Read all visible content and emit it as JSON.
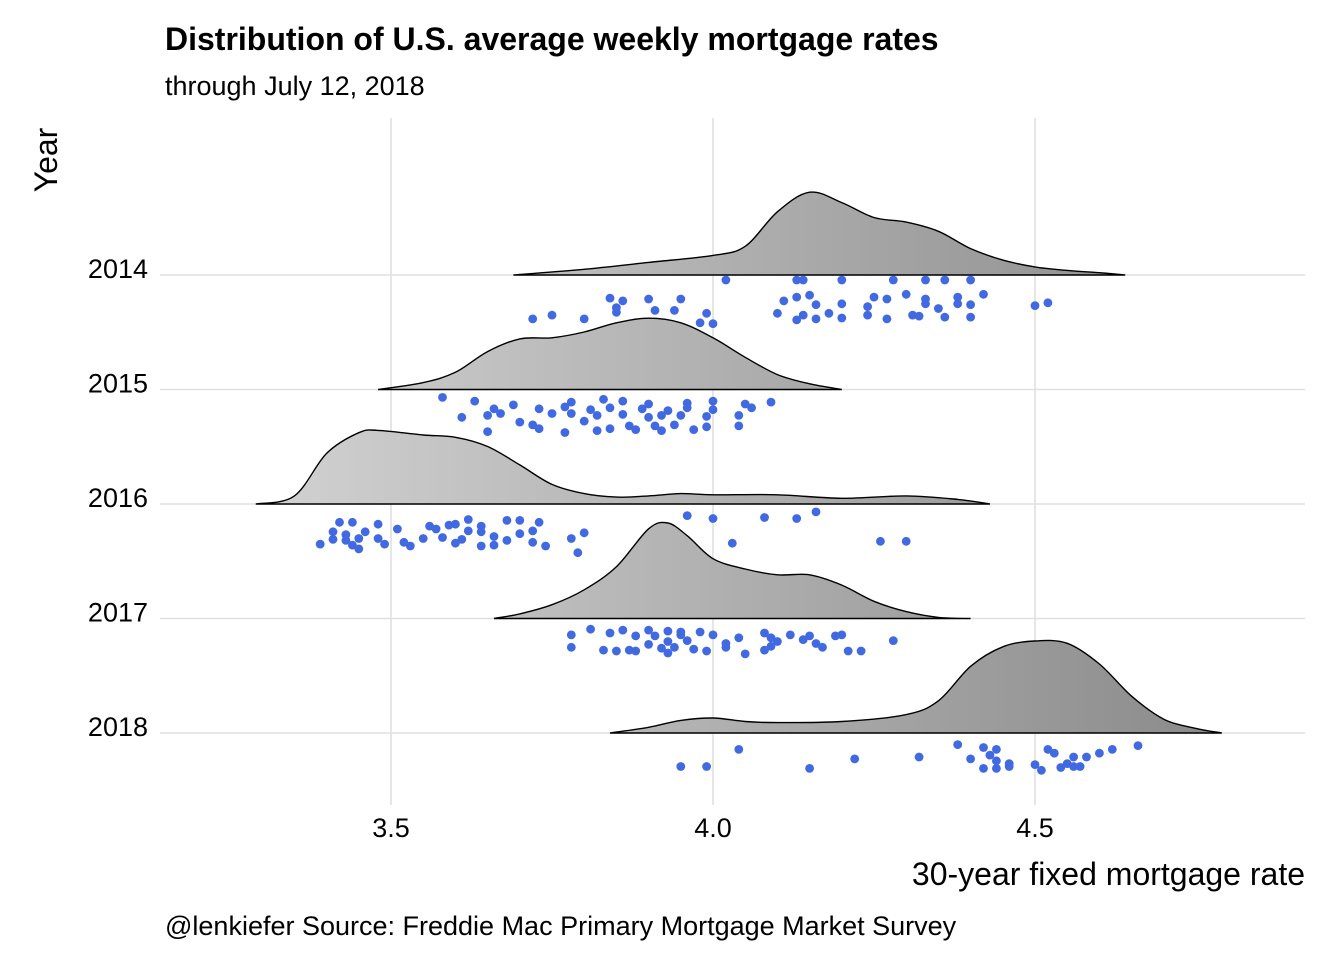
{
  "chart_data": {
    "type": "ridgeline",
    "title": "Distribution of U.S. average weekly mortgage rates",
    "subtitle": "through  July 12, 2018",
    "xlabel": "30-year fixed mortgage rate",
    "ylabel": "Year",
    "caption": "@lenkiefer Source: Freddie Mac Primary Mortgage Market Survey",
    "xlim": [
      3.2,
      4.9
    ],
    "x_ticks": [
      {
        "value": 3.5,
        "label": "3.5"
      },
      {
        "value": 4.0,
        "label": "4.0"
      },
      {
        "value": 4.5,
        "label": "4.5"
      }
    ],
    "grid": true,
    "colors": {
      "points": "#4169e1",
      "ridge_light": "#d4d4d4",
      "ridge_dark": "#8a8a8a",
      "grid": "#e0e0e0"
    },
    "ridges": [
      {
        "year": "2014",
        "density": [
          [
            3.69,
            0.0
          ],
          [
            3.8,
            0.05
          ],
          [
            3.9,
            0.11
          ],
          [
            4.0,
            0.17
          ],
          [
            4.05,
            0.25
          ],
          [
            4.1,
            0.55
          ],
          [
            4.15,
            0.72
          ],
          [
            4.2,
            0.63
          ],
          [
            4.25,
            0.5
          ],
          [
            4.3,
            0.46
          ],
          [
            4.35,
            0.38
          ],
          [
            4.4,
            0.23
          ],
          [
            4.45,
            0.13
          ],
          [
            4.5,
            0.07
          ],
          [
            4.55,
            0.04
          ],
          [
            4.6,
            0.02
          ],
          [
            4.64,
            0.0
          ]
        ],
        "points": [
          [
            4.02,
            0
          ],
          [
            4.13,
            0
          ],
          [
            4.14,
            0
          ],
          [
            4.2,
            0
          ],
          [
            4.28,
            0
          ],
          [
            4.33,
            0
          ],
          [
            4.36,
            0
          ],
          [
            4.4,
            0
          ],
          [
            4.13,
            0.18
          ],
          [
            4.15,
            0.16
          ],
          [
            4.25,
            0.18
          ],
          [
            4.3,
            0.15
          ],
          [
            4.33,
            0.2
          ],
          [
            4.38,
            0.18
          ],
          [
            4.42,
            0.15
          ],
          [
            3.9,
            0.2
          ],
          [
            3.95,
            0.2
          ],
          [
            3.84,
            0.19
          ],
          [
            3.86,
            0.22
          ],
          [
            3.85,
            0.29
          ],
          [
            4.11,
            0.22
          ],
          [
            4.16,
            0.26
          ],
          [
            4.2,
            0.25
          ],
          [
            4.24,
            0.28
          ],
          [
            4.27,
            0.2
          ],
          [
            4.33,
            0.25
          ],
          [
            4.35,
            0.3
          ],
          [
            4.38,
            0.25
          ],
          [
            4.4,
            0.26
          ],
          [
            4.52,
            0.24
          ],
          [
            4.5,
            0.27
          ],
          [
            3.91,
            0.32
          ],
          [
            3.94,
            0.32
          ],
          [
            3.99,
            0.35
          ],
          [
            3.75,
            0.37
          ],
          [
            3.8,
            0.41
          ],
          [
            3.85,
            0.34
          ],
          [
            4.1,
            0.35
          ],
          [
            4.14,
            0.37
          ],
          [
            4.18,
            0.35
          ],
          [
            4.2,
            0.4
          ],
          [
            4.24,
            0.37
          ],
          [
            4.31,
            0.37
          ],
          [
            4.36,
            0.39
          ],
          [
            4.4,
            0.39
          ],
          [
            4.13,
            0.42
          ],
          [
            4.16,
            0.41
          ],
          [
            4.27,
            0.41
          ],
          [
            4.32,
            0.38
          ],
          [
            3.72,
            0.41
          ],
          [
            3.98,
            0.45
          ],
          [
            4.0,
            0.46
          ]
        ]
      },
      {
        "year": "2015",
        "density": [
          [
            3.48,
            0.0
          ],
          [
            3.55,
            0.06
          ],
          [
            3.6,
            0.15
          ],
          [
            3.65,
            0.33
          ],
          [
            3.7,
            0.44
          ],
          [
            3.75,
            0.45
          ],
          [
            3.8,
            0.5
          ],
          [
            3.85,
            0.58
          ],
          [
            3.9,
            0.62
          ],
          [
            3.95,
            0.58
          ],
          [
            4.0,
            0.45
          ],
          [
            4.05,
            0.28
          ],
          [
            4.1,
            0.13
          ],
          [
            4.15,
            0.05
          ],
          [
            4.2,
            0.0
          ]
        ],
        "points": [
          [
            3.58,
            0.03
          ],
          [
            3.63,
            0.07
          ],
          [
            3.78,
            0.08
          ],
          [
            3.83,
            0.05
          ],
          [
            3.86,
            0.07
          ],
          [
            3.9,
            0.1
          ],
          [
            3.96,
            0.09
          ],
          [
            4.0,
            0.07
          ],
          [
            4.05,
            0.1
          ],
          [
            4.09,
            0.08
          ],
          [
            3.66,
            0.15
          ],
          [
            3.69,
            0.11
          ],
          [
            3.73,
            0.15
          ],
          [
            3.77,
            0.13
          ],
          [
            3.81,
            0.16
          ],
          [
            3.84,
            0.14
          ],
          [
            3.89,
            0.15
          ],
          [
            3.93,
            0.17
          ],
          [
            3.96,
            0.14
          ],
          [
            4.0,
            0.16
          ],
          [
            4.06,
            0.14
          ],
          [
            3.61,
            0.24
          ],
          [
            3.65,
            0.22
          ],
          [
            3.67,
            0.2
          ],
          [
            3.75,
            0.2
          ],
          [
            3.78,
            0.2
          ],
          [
            3.82,
            0.22
          ],
          [
            3.86,
            0.21
          ],
          [
            3.9,
            0.24
          ],
          [
            3.92,
            0.22
          ],
          [
            3.95,
            0.22
          ],
          [
            3.99,
            0.23
          ],
          [
            4.04,
            0.22
          ],
          [
            3.7,
            0.29
          ],
          [
            3.72,
            0.32
          ],
          [
            3.8,
            0.28
          ],
          [
            3.84,
            0.36
          ],
          [
            3.87,
            0.33
          ],
          [
            3.91,
            0.33
          ],
          [
            3.94,
            0.32
          ],
          [
            3.99,
            0.34
          ],
          [
            4.04,
            0.33
          ],
          [
            3.65,
            0.39
          ],
          [
            3.73,
            0.36
          ],
          [
            3.77,
            0.4
          ],
          [
            3.82,
            0.38
          ],
          [
            3.88,
            0.37
          ],
          [
            3.92,
            0.38
          ],
          [
            3.97,
            0.37
          ]
        ]
      },
      {
        "year": "2016",
        "density": [
          [
            3.29,
            0.0
          ],
          [
            3.35,
            0.07
          ],
          [
            3.4,
            0.44
          ],
          [
            3.45,
            0.62
          ],
          [
            3.48,
            0.64
          ],
          [
            3.55,
            0.6
          ],
          [
            3.6,
            0.58
          ],
          [
            3.65,
            0.5
          ],
          [
            3.7,
            0.34
          ],
          [
            3.75,
            0.17
          ],
          [
            3.8,
            0.09
          ],
          [
            3.85,
            0.06
          ],
          [
            3.9,
            0.07
          ],
          [
            3.95,
            0.09
          ],
          [
            4.0,
            0.08
          ],
          [
            4.1,
            0.08
          ],
          [
            4.2,
            0.05
          ],
          [
            4.3,
            0.07
          ],
          [
            4.38,
            0.04
          ],
          [
            4.43,
            0.0
          ]
        ],
        "points": [
          [
            3.96,
            0.07
          ],
          [
            4.0,
            0.1
          ],
          [
            4.08,
            0.09
          ],
          [
            4.13,
            0.1
          ],
          [
            4.16,
            0.03
          ],
          [
            3.42,
            0.14
          ],
          [
            3.44,
            0.14
          ],
          [
            3.48,
            0.16
          ],
          [
            3.56,
            0.18
          ],
          [
            3.6,
            0.16
          ],
          [
            3.62,
            0.11
          ],
          [
            3.64,
            0.18
          ],
          [
            3.68,
            0.12
          ],
          [
            3.7,
            0.12
          ],
          [
            3.73,
            0.14
          ],
          [
            3.59,
            0.17
          ],
          [
            3.46,
            0.24
          ],
          [
            3.51,
            0.21
          ],
          [
            3.57,
            0.21
          ],
          [
            3.62,
            0.23
          ],
          [
            3.64,
            0.24
          ],
          [
            3.7,
            0.26
          ],
          [
            3.72,
            0.23
          ],
          [
            3.8,
            0.25
          ],
          [
            3.41,
            0.24
          ],
          [
            3.43,
            0.27
          ],
          [
            3.45,
            0.31
          ],
          [
            3.48,
            0.31
          ],
          [
            3.52,
            0.35
          ],
          [
            3.55,
            0.31
          ],
          [
            3.58,
            0.3
          ],
          [
            3.61,
            0.32
          ],
          [
            3.66,
            0.29
          ],
          [
            3.68,
            0.33
          ],
          [
            3.72,
            0.35
          ],
          [
            3.78,
            0.31
          ],
          [
            3.41,
            0.32
          ],
          [
            3.43,
            0.33
          ],
          [
            3.39,
            0.37
          ],
          [
            3.44,
            0.38
          ],
          [
            3.45,
            0.42
          ],
          [
            3.49,
            0.37
          ],
          [
            3.53,
            0.39
          ],
          [
            3.6,
            0.36
          ],
          [
            3.64,
            0.39
          ],
          [
            3.66,
            0.38
          ],
          [
            3.74,
            0.39
          ],
          [
            3.79,
            0.46
          ],
          [
            4.03,
            0.36
          ],
          [
            4.26,
            0.34
          ],
          [
            4.3,
            0.34
          ]
        ]
      },
      {
        "year": "2017",
        "density": [
          [
            3.66,
            0.0
          ],
          [
            3.7,
            0.04
          ],
          [
            3.75,
            0.12
          ],
          [
            3.8,
            0.25
          ],
          [
            3.85,
            0.45
          ],
          [
            3.9,
            0.78
          ],
          [
            3.93,
            0.83
          ],
          [
            3.96,
            0.72
          ],
          [
            4.0,
            0.52
          ],
          [
            4.05,
            0.43
          ],
          [
            4.1,
            0.38
          ],
          [
            4.15,
            0.38
          ],
          [
            4.2,
            0.29
          ],
          [
            4.25,
            0.15
          ],
          [
            4.3,
            0.06
          ],
          [
            4.35,
            0.01
          ],
          [
            4.4,
            0.0
          ]
        ],
        "points": [
          [
            3.81,
            0.06
          ],
          [
            3.86,
            0.07
          ],
          [
            3.9,
            0.07
          ],
          [
            3.93,
            0.08
          ],
          [
            3.95,
            0.09
          ],
          [
            3.98,
            0.09
          ],
          [
            4.0,
            0.12
          ],
          [
            4.08,
            0.1
          ],
          [
            4.12,
            0.12
          ],
          [
            4.15,
            0.13
          ],
          [
            4.2,
            0.12
          ],
          [
            3.78,
            0.12
          ],
          [
            3.84,
            0.1
          ],
          [
            3.88,
            0.13
          ],
          [
            3.91,
            0.13
          ],
          [
            3.95,
            0.12
          ],
          [
            4.04,
            0.15
          ],
          [
            4.09,
            0.15
          ],
          [
            4.14,
            0.17
          ],
          [
            4.19,
            0.13
          ],
          [
            3.93,
            0.19
          ],
          [
            3.96,
            0.18
          ],
          [
            4.02,
            0.21
          ],
          [
            4.1,
            0.19
          ],
          [
            4.16,
            0.21
          ],
          [
            4.28,
            0.18
          ],
          [
            3.78,
            0.25
          ],
          [
            3.83,
            0.28
          ],
          [
            3.87,
            0.28
          ],
          [
            3.9,
            0.22
          ],
          [
            3.92,
            0.26
          ],
          [
            3.94,
            0.25
          ],
          [
            3.97,
            0.27
          ],
          [
            4.02,
            0.25
          ],
          [
            4.09,
            0.24
          ],
          [
            4.17,
            0.25
          ],
          [
            3.85,
            0.29
          ],
          [
            3.88,
            0.29
          ],
          [
            3.93,
            0.31
          ],
          [
            3.99,
            0.29
          ],
          [
            4.05,
            0.32
          ],
          [
            4.08,
            0.28
          ],
          [
            4.21,
            0.29
          ],
          [
            4.23,
            0.29
          ]
        ]
      },
      {
        "year": "2018",
        "density": [
          [
            3.84,
            0.0
          ],
          [
            3.9,
            0.05
          ],
          [
            3.95,
            0.11
          ],
          [
            4.0,
            0.13
          ],
          [
            4.05,
            0.1
          ],
          [
            4.1,
            0.09
          ],
          [
            4.2,
            0.1
          ],
          [
            4.3,
            0.16
          ],
          [
            4.35,
            0.28
          ],
          [
            4.4,
            0.58
          ],
          [
            4.45,
            0.75
          ],
          [
            4.5,
            0.8
          ],
          [
            4.55,
            0.78
          ],
          [
            4.6,
            0.6
          ],
          [
            4.65,
            0.32
          ],
          [
            4.7,
            0.12
          ],
          [
            4.75,
            0.04
          ],
          [
            4.79,
            0.0
          ]
        ],
        "points": [
          [
            4.04,
            0.12
          ],
          [
            4.38,
            0.07
          ],
          [
            4.42,
            0.1
          ],
          [
            4.44,
            0.12
          ],
          [
            4.52,
            0.12
          ],
          [
            4.62,
            0.12
          ],
          [
            4.66,
            0.08
          ],
          [
            4.6,
            0.16
          ],
          [
            4.58,
            0.2
          ],
          [
            4.22,
            0.22
          ],
          [
            4.32,
            0.2
          ],
          [
            4.4,
            0.22
          ],
          [
            4.43,
            0.18
          ],
          [
            4.53,
            0.16
          ],
          [
            4.56,
            0.2
          ],
          [
            4.44,
            0.24
          ],
          [
            4.46,
            0.27
          ],
          [
            4.5,
            0.28
          ],
          [
            4.55,
            0.27
          ],
          [
            4.57,
            0.3
          ],
          [
            3.95,
            0.3
          ],
          [
            3.99,
            0.3
          ],
          [
            4.15,
            0.32
          ],
          [
            4.42,
            0.32
          ],
          [
            4.44,
            0.32
          ],
          [
            4.46,
            0.3
          ],
          [
            4.51,
            0.34
          ],
          [
            4.56,
            0.3
          ],
          [
            4.54,
            0.31
          ]
        ]
      }
    ]
  }
}
